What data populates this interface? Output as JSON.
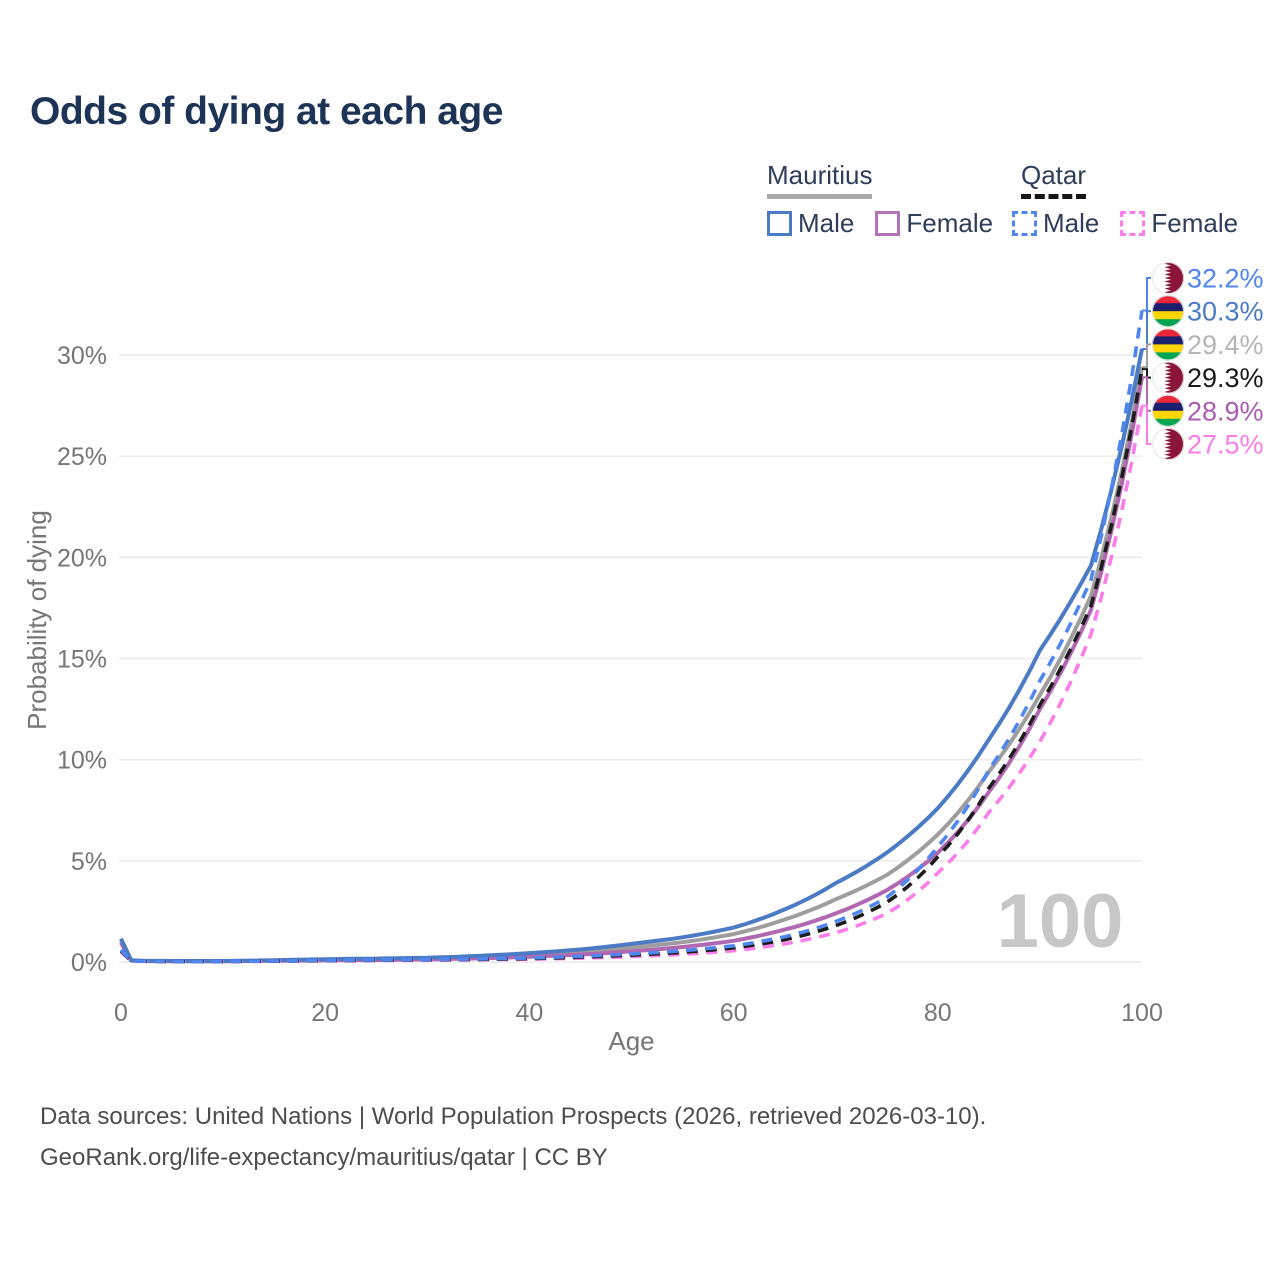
{
  "title": "Odds of dying at each age",
  "legend": {
    "groups": [
      {
        "name": "Mauritius",
        "underline_style": "solid",
        "underline_color": "#a9a9a9",
        "items": [
          {
            "label": "Male",
            "color": "#4b7bc4",
            "dashed": false
          },
          {
            "label": "Female",
            "color": "#b473b8",
            "dashed": false
          }
        ]
      },
      {
        "name": "Qatar",
        "underline_style": "dashed",
        "underline_color": "#161616",
        "items": [
          {
            "label": "Male",
            "color": "#4f86f0",
            "dashed": true
          },
          {
            "label": "Female",
            "color": "#fa7de9",
            "dashed": true
          }
        ]
      }
    ]
  },
  "chart_data": {
    "type": "line",
    "title": "Odds of dying at each age",
    "xlabel": "Age",
    "ylabel": "Probability of dying",
    "x_ticks": [
      0,
      20,
      40,
      60,
      80,
      100
    ],
    "y_tick_labels": [
      "0%",
      "5%",
      "10%",
      "15%",
      "20%",
      "25%",
      "30%"
    ],
    "xlim": [
      0,
      100
    ],
    "ylim_pct": [
      0,
      33
    ],
    "grid": "horizontal-only",
    "grid_color": "#ececec",
    "axis_text_color": "#767676",
    "watermark": "100",
    "watermark_color": "#c7c7c7",
    "ages": [
      0,
      1,
      2,
      5,
      10,
      15,
      20,
      25,
      30,
      35,
      40,
      45,
      50,
      55,
      60,
      65,
      70,
      75,
      80,
      85,
      90,
      95,
      100
    ],
    "series": [
      {
        "name": "Mauritius both sexes",
        "country": "Mauritius",
        "flag": "mauritius",
        "color": "#9e9e9e",
        "label_color": "#b5b5b5",
        "dashed": false,
        "end_label": "29.4%",
        "values_pct": [
          1.05,
          0.08,
          0.055,
          0.045,
          0.045,
          0.075,
          0.11,
          0.14,
          0.17,
          0.24,
          0.35,
          0.5,
          0.72,
          0.98,
          1.38,
          2.1,
          3.1,
          4.3,
          6.3,
          9.4,
          13.2,
          18.1,
          29.4
        ]
      },
      {
        "name": "Mauritius female",
        "country": "Mauritius",
        "flag": "mauritius",
        "color": "#b168b1",
        "label_color": "#a95cb2",
        "dashed": false,
        "end_label": "28.9%",
        "values_pct": [
          0.95,
          0.07,
          0.05,
          0.04,
          0.04,
          0.06,
          0.08,
          0.1,
          0.13,
          0.18,
          0.26,
          0.37,
          0.53,
          0.74,
          1.05,
          1.6,
          2.4,
          3.55,
          5.4,
          8.4,
          12.5,
          17.4,
          28.9
        ]
      },
      {
        "name": "Mauritius male",
        "country": "Mauritius",
        "flag": "mauritius",
        "color": "#4b7bc4",
        "label_color": "#4b7bc4",
        "dashed": false,
        "end_label": "30.3%",
        "values_pct": [
          1.15,
          0.09,
          0.06,
          0.05,
          0.05,
          0.09,
          0.14,
          0.17,
          0.21,
          0.3,
          0.44,
          0.62,
          0.9,
          1.22,
          1.7,
          2.6,
          3.9,
          5.4,
          7.6,
          11.0,
          15.4,
          19.6,
          30.3
        ]
      },
      {
        "name": "Qatar female",
        "country": "Qatar",
        "flag": "qatar",
        "color": "#fa7de9",
        "label_color": "#fa7de9",
        "dashed": true,
        "end_label": "27.5%",
        "values_pct": [
          0.5,
          0.05,
          0.033,
          0.024,
          0.024,
          0.038,
          0.055,
          0.07,
          0.09,
          0.11,
          0.14,
          0.19,
          0.27,
          0.38,
          0.56,
          0.9,
          1.45,
          2.4,
          4.4,
          7.4,
          10.9,
          16.2,
          27.5
        ]
      },
      {
        "name": "Qatar both sexes",
        "country": "Qatar",
        "flag": "qatar",
        "color": "#1c1c1c",
        "label_color": "#1a1a1a",
        "dashed": true,
        "end_label": "29.3%",
        "values_pct": [
          0.55,
          0.055,
          0.038,
          0.028,
          0.028,
          0.045,
          0.07,
          0.09,
          0.11,
          0.13,
          0.17,
          0.24,
          0.34,
          0.48,
          0.7,
          1.1,
          1.8,
          2.95,
          5.2,
          8.6,
          12.7,
          17.6,
          29.3
        ]
      },
      {
        "name": "Qatar male",
        "country": "Qatar",
        "flag": "qatar",
        "color": "#4f86f0",
        "label_color": "#4f86f0",
        "dashed": true,
        "end_label": "32.2%",
        "values_pct": [
          0.6,
          0.06,
          0.04,
          0.03,
          0.03,
          0.05,
          0.08,
          0.1,
          0.12,
          0.15,
          0.2,
          0.28,
          0.4,
          0.56,
          0.8,
          1.25,
          2.0,
          3.2,
          5.7,
          9.5,
          13.9,
          18.9,
          32.2
        ]
      }
    ],
    "end_labels_sorted": [
      "32.2%",
      "30.3%",
      "29.4%",
      "29.3%",
      "28.9%",
      "27.5%"
    ],
    "flag_colors": {
      "qatar_maroon": "#8A1538",
      "mauritius_red": "#EA2839",
      "mauritius_blue": "#1A206D",
      "mauritius_yellow": "#FFD500",
      "mauritius_green": "#00A551"
    }
  },
  "footer": {
    "line1": "Data sources: United Nations | World Population Prospects (2026, retrieved 2026-03-10).",
    "line2": "GeoRank.org/life-expectancy/mauritius/qatar | CC BY"
  }
}
